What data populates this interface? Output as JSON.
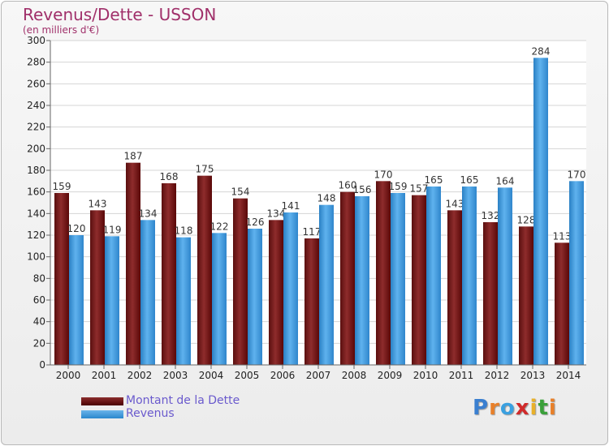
{
  "title": "Revenus/Dette - USSON",
  "subtitle": "(en milliers d'€)",
  "legend": {
    "dette": "Montant de la Dette",
    "revenus": "Revenus"
  },
  "logo": {
    "text": "Proxiti",
    "letters": [
      "P",
      "r",
      "o",
      "x",
      "i",
      "t",
      "i"
    ],
    "colors": [
      "#3a7fd0",
      "#e8802a",
      "#3aa0e0",
      "#d02a2a",
      "#e8b02a",
      "#3aa03a",
      "#e8802a"
    ]
  },
  "chart_data": {
    "type": "bar",
    "categories": [
      "2000",
      "2001",
      "2002",
      "2003",
      "2004",
      "2005",
      "2006",
      "2007",
      "2008",
      "2009",
      "2010",
      "2011",
      "2012",
      "2013",
      "2014"
    ],
    "series": [
      {
        "name": "Montant de la Dette",
        "values": [
          159,
          143,
          187,
          168,
          175,
          154,
          134,
          117,
          160,
          170,
          157,
          143,
          132,
          128,
          113
        ],
        "color": "#7a1e1e"
      },
      {
        "name": "Revenus",
        "values": [
          120,
          119,
          134,
          118,
          122,
          126,
          141,
          148,
          156,
          159,
          165,
          165,
          164,
          284,
          170
        ],
        "color": "#4aa3e3"
      }
    ],
    "ylim": [
      0,
      300
    ],
    "yticks": [
      0,
      20,
      40,
      60,
      80,
      100,
      120,
      140,
      160,
      180,
      200,
      220,
      240,
      260,
      280,
      300
    ],
    "grid": true,
    "legend_position": "bottom-left"
  }
}
